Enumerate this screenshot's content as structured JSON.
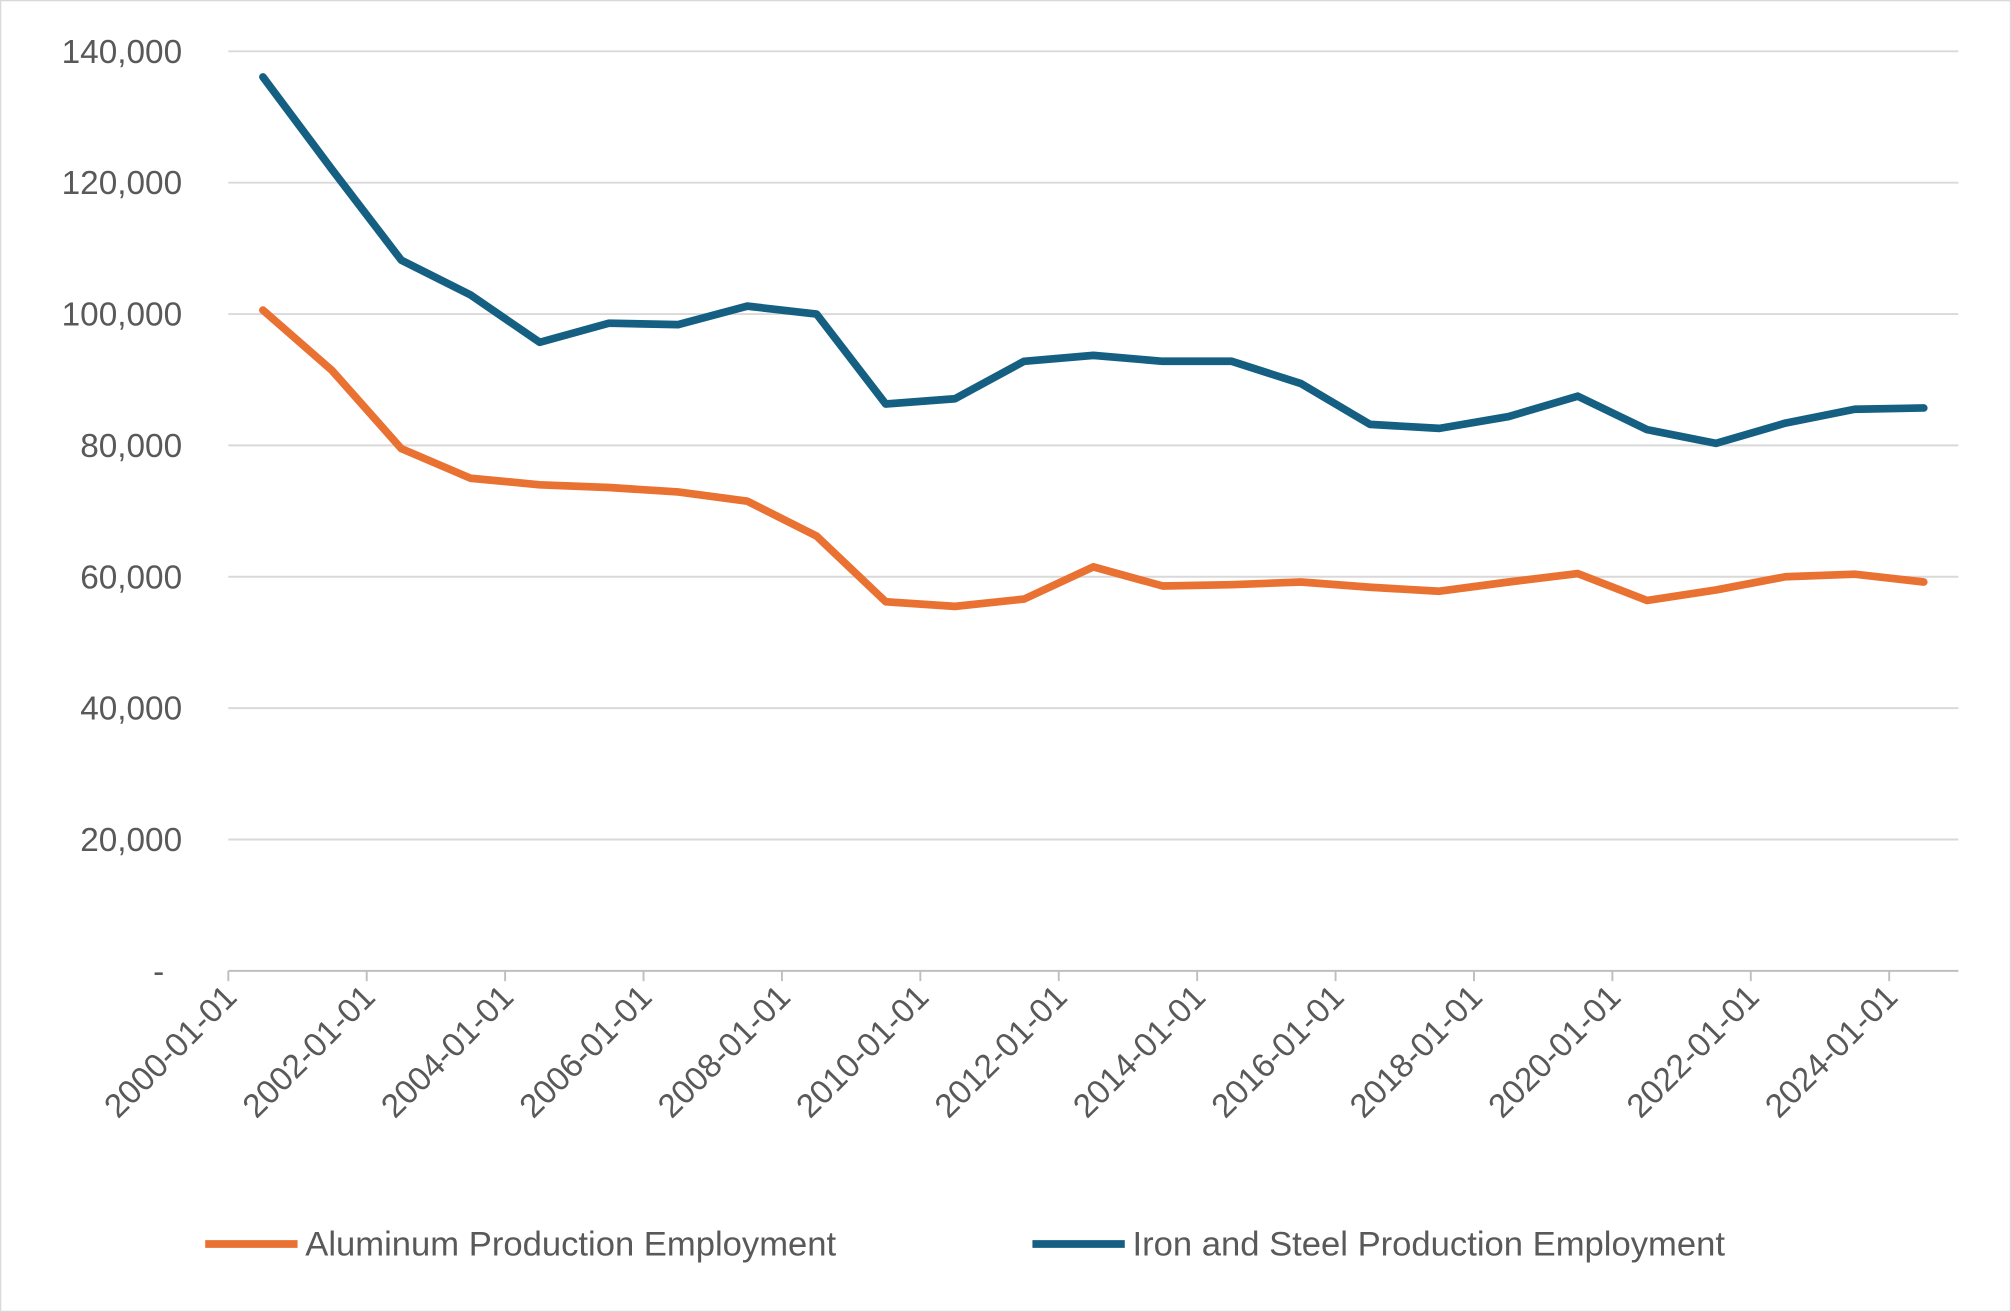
{
  "chart_data": {
    "type": "line",
    "title": "",
    "xlabel": "",
    "ylabel": "",
    "ylim": [
      0,
      140000
    ],
    "yticks": [
      0,
      20000,
      40000,
      60000,
      80000,
      100000,
      120000,
      140000
    ],
    "ytick_labels": [
      "-",
      "20,000",
      "40,000",
      "60,000",
      "80,000",
      "100,000",
      "120,000",
      "140,000"
    ],
    "grid": true,
    "legend_position": "bottom",
    "x": [
      "2000-01-01",
      "2001-01-01",
      "2002-01-01",
      "2003-01-01",
      "2004-01-01",
      "2005-01-01",
      "2006-01-01",
      "2007-01-01",
      "2008-01-01",
      "2009-01-01",
      "2010-01-01",
      "2011-01-01",
      "2012-01-01",
      "2013-01-01",
      "2014-01-01",
      "2015-01-01",
      "2016-01-01",
      "2017-01-01",
      "2018-01-01",
      "2019-01-01",
      "2020-01-01",
      "2021-01-01",
      "2022-01-01",
      "2023-01-01",
      "2024-01-01"
    ],
    "xtick_labels": [
      "2000-01-01",
      "2002-01-01",
      "2004-01-01",
      "2006-01-01",
      "2008-01-01",
      "2010-01-01",
      "2012-01-01",
      "2014-01-01",
      "2016-01-01",
      "2018-01-01",
      "2020-01-01",
      "2022-01-01",
      "2024-01-01"
    ],
    "series": [
      {
        "name": "Aluminum Production Employment",
        "color": "#E97132",
        "values": [
          100600,
          91400,
          79500,
          75000,
          74000,
          73600,
          72900,
          71500,
          66200,
          56200,
          55500,
          56600,
          61500,
          58600,
          58800,
          59200,
          58400,
          57800,
          59200,
          60500,
          56400,
          58000,
          60000,
          60400,
          59200
        ]
      },
      {
        "name": "Iron and Steel Production Employment",
        "color": "#156082",
        "values": [
          136100,
          122000,
          108200,
          102900,
          95700,
          98600,
          98400,
          101200,
          100000,
          86300,
          87100,
          92800,
          93700,
          92800,
          92800,
          89400,
          83200,
          82600,
          84400,
          87500,
          82400,
          80300,
          83400,
          85500,
          85700
        ]
      }
    ]
  }
}
